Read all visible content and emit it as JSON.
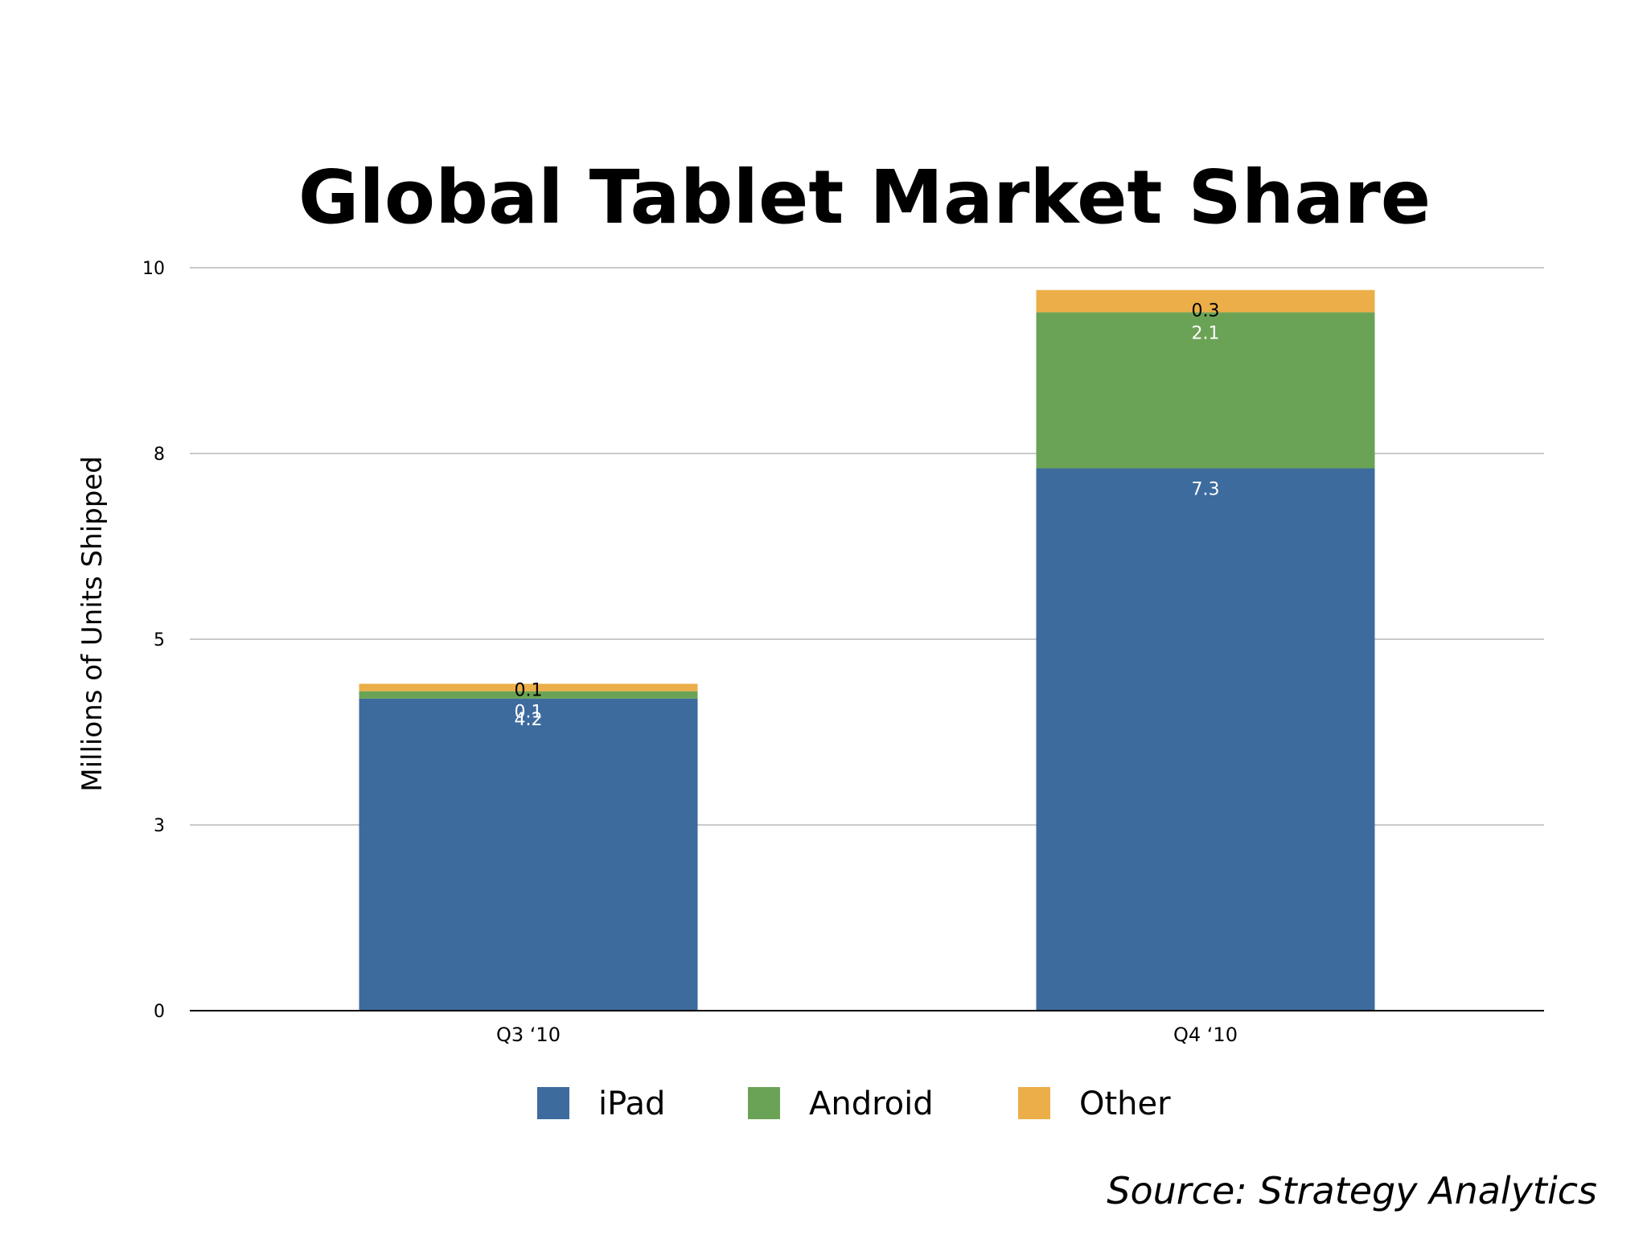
{
  "chart_data": {
    "type": "bar",
    "stacked": true,
    "title": "Global Tablet Market Share",
    "ylabel": "Millions of Units Shipped",
    "xlabel": "",
    "categories": [
      "Q3 ‘10",
      "Q4 ‘10"
    ],
    "series": [
      {
        "name": "iPad",
        "values": [
          4.2,
          7.3
        ],
        "color": "#3d6b9e",
        "label_color": "#ffffff",
        "labels": [
          "4.2",
          "7.3"
        ]
      },
      {
        "name": "Android",
        "values": [
          0.1,
          2.1
        ],
        "color": "#6ba356",
        "label_color": "#ffffff",
        "labels": [
          "0.1",
          "2.1"
        ]
      },
      {
        "name": "Other",
        "values": [
          0.1,
          0.3
        ],
        "color": "#ebae48",
        "label_color": "#000000",
        "labels": [
          "0.1",
          "0.3"
        ]
      }
    ],
    "ylim": [
      0,
      10
    ],
    "yticks": [
      0,
      2.5,
      5,
      7.5,
      10
    ],
    "ytick_labels": [
      "0",
      "3",
      "5",
      "8",
      "10"
    ],
    "grid": true,
    "legend": "bottom"
  },
  "source": "Source: Strategy Analytics"
}
